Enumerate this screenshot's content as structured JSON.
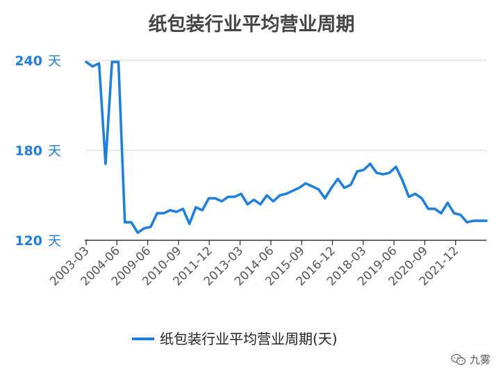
{
  "chart_data": {
    "type": "line",
    "title": "纸包装行业平均营业周期",
    "xlabel": "",
    "ylabel": "",
    "ylim": [
      120,
      240
    ],
    "yticks": [
      {
        "value": 120,
        "label": "120 天"
      },
      {
        "value": 180,
        "label": "180 天"
      },
      {
        "value": 240,
        "label": "240 天"
      }
    ],
    "xtick_labels": [
      "2003-03",
      "2004-06",
      "2009-06",
      "2010-09",
      "2011-12",
      "2013-03",
      "2014-06",
      "2015-09",
      "2016-12",
      "2018-03",
      "2019-06",
      "2020-09",
      "2021-12"
    ],
    "grid": true,
    "legend": "bottom-center",
    "series": [
      {
        "name": "纸包装行业平均营业周期(天)",
        "color": "#1f7fdc",
        "values": [
          239,
          236,
          238,
          171,
          239,
          239,
          132,
          132,
          125,
          128,
          129,
          138,
          138,
          140,
          139,
          141,
          131,
          142,
          140,
          148,
          148,
          146,
          149,
          149,
          151,
          144,
          147,
          144,
          150,
          146,
          150,
          151,
          153,
          155,
          158,
          156,
          154,
          148,
          155,
          161,
          155,
          157,
          166,
          167,
          171,
          165,
          164,
          165,
          169,
          160,
          149,
          151,
          148,
          141,
          141,
          138,
          145,
          138,
          137,
          132,
          133,
          133,
          133
        ]
      }
    ]
  },
  "watermark": {
    "text": "九雾",
    "icon": "wechat-icon"
  }
}
